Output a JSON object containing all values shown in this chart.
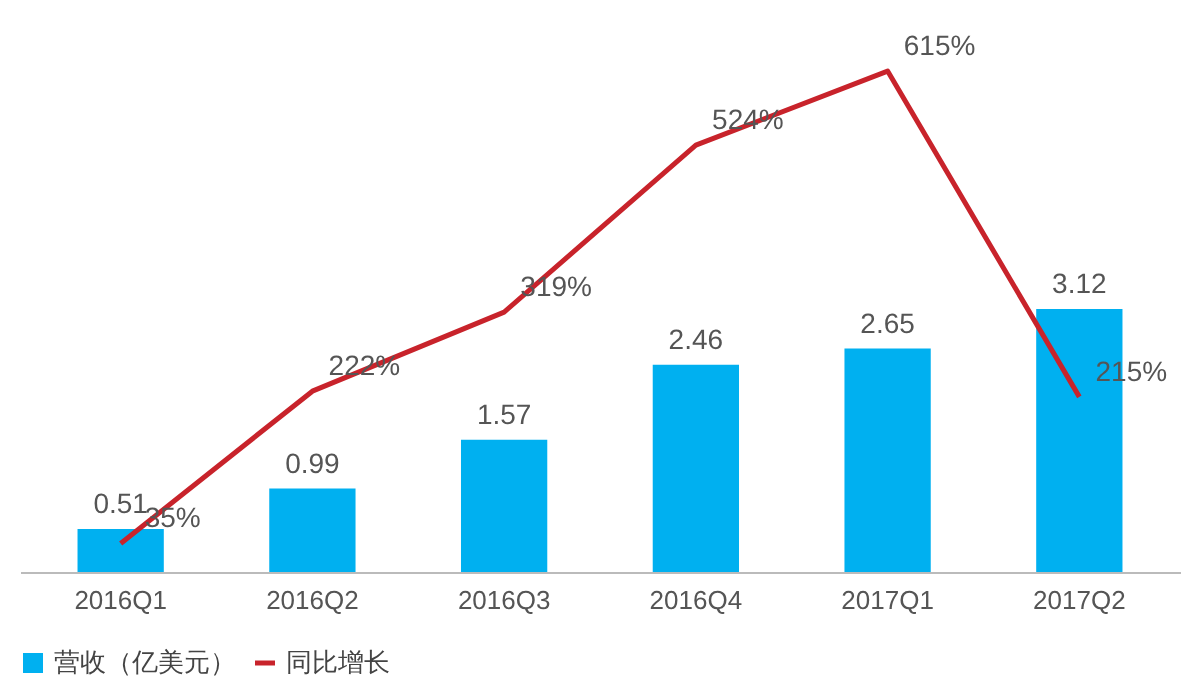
{
  "chart_data": {
    "type": "bar",
    "categories": [
      "2016Q1",
      "2016Q2",
      "2016Q3",
      "2016Q4",
      "2017Q1",
      "2017Q2"
    ],
    "series": [
      {
        "name": "营收（亿美元）",
        "color": "#00b0f0",
        "values": [
          0.51,
          0.99,
          1.57,
          2.46,
          2.65,
          3.12
        ],
        "value_labels": [
          "0.51",
          "0.99",
          "1.57",
          "2.46",
          "2.65",
          "3.12"
        ]
      },
      {
        "name": "同比增长",
        "type": "line",
        "axis": "y2",
        "color": "#c8232b",
        "values": [
          35,
          222,
          319,
          524,
          615,
          215
        ],
        "value_labels": [
          "35%",
          "222%",
          "319%",
          "524%",
          "615%",
          "215%"
        ]
      }
    ],
    "legend": "bottom",
    "grid": false,
    "marker": "none"
  }
}
